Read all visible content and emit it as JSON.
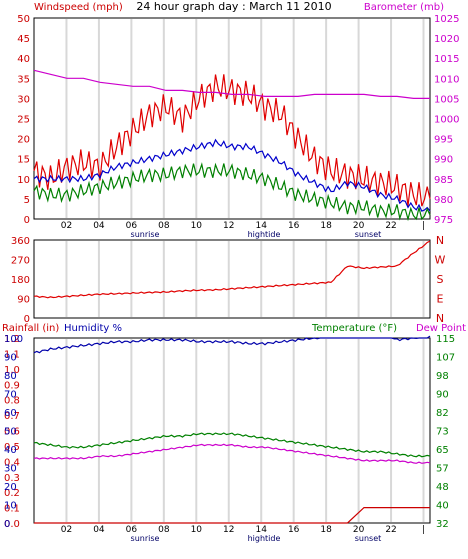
{
  "title": "24 hour graph day : March 11 2010",
  "colors": {
    "wind": "#e00000",
    "gust": "#0000cc",
    "wind_green": "#008000",
    "baro": "#cc00cc",
    "rain": "#cc0000",
    "humidity": "#0000aa",
    "temp": "#008000",
    "dew": "#cc00cc",
    "grid": "#d8d8d8",
    "axis_left": "#cc0000",
    "axis_right": "#cc00cc"
  },
  "time_axis": {
    "ticks": [
      "02",
      "04",
      "06",
      "08",
      "10",
      "12",
      "14",
      "16",
      "18",
      "20",
      "22",
      "|"
    ],
    "events": [
      "sunrise",
      "hightide",
      "sunset"
    ]
  },
  "chart_data": [
    {
      "id": "wind-baro",
      "type": "line",
      "left_label": "Windspeed (mph)",
      "right_label": "Barometer (mb)",
      "left_ticks": [
        "0",
        "5",
        "10",
        "15",
        "20",
        "25",
        "30",
        "35",
        "40",
        "45",
        "50"
      ],
      "right_ticks": [
        "975",
        "980",
        "985",
        "990",
        "995",
        "1000",
        "1005",
        "1010",
        "1015",
        "1020",
        "1025"
      ],
      "ylim_left": [
        0,
        50
      ],
      "ylim_right": [
        975,
        1025
      ],
      "x": [
        0,
        1,
        2,
        3,
        4,
        5,
        6,
        7,
        8,
        9,
        10,
        11,
        12,
        13,
        14,
        15,
        16,
        17,
        18,
        19,
        20,
        21,
        22,
        23,
        24
      ],
      "series": [
        {
          "role": "wind-red",
          "axis": "left",
          "values": [
            12,
            10,
            13,
            14,
            13,
            18,
            22,
            26,
            28,
            25,
            30,
            33,
            32,
            31,
            28,
            26,
            20,
            15,
            12,
            11,
            10,
            9,
            8,
            6,
            5
          ]
        },
        {
          "role": "wind-blue",
          "axis": "left",
          "values": [
            10,
            10,
            10,
            10,
            11,
            13,
            14,
            15,
            16,
            17,
            18,
            19,
            18,
            18,
            16,
            14,
            11,
            9,
            7,
            9,
            8,
            6,
            5,
            3,
            2
          ]
        },
        {
          "role": "wind-green",
          "axis": "left",
          "values": [
            7,
            6,
            6,
            7,
            8,
            9,
            10,
            11,
            11,
            12,
            12,
            12,
            12,
            11,
            10,
            8,
            6,
            5,
            4,
            3,
            3,
            2,
            2,
            1,
            1
          ]
        },
        {
          "role": "baro",
          "axis": "right",
          "values": [
            1012,
            1011,
            1010,
            1010,
            1009,
            1008.5,
            1008,
            1008,
            1007,
            1007,
            1006.5,
            1006.5,
            1006,
            1006,
            1005.5,
            1005.5,
            1005.5,
            1006,
            1006,
            1006,
            1006,
            1005.5,
            1005.5,
            1005,
            1005
          ]
        }
      ]
    },
    {
      "id": "direction",
      "type": "line",
      "left_ticks": [
        "0",
        "90",
        "180",
        "270",
        "360"
      ],
      "right_ticks": [
        "N",
        "E",
        "S",
        "W",
        "N"
      ],
      "ylim": [
        0,
        360
      ],
      "x": [
        0,
        1,
        2,
        3,
        4,
        5,
        6,
        7,
        8,
        9,
        10,
        11,
        12,
        13,
        14,
        15,
        16,
        17,
        18,
        19,
        20,
        21,
        22,
        23,
        24
      ],
      "series": [
        {
          "role": "wind-dir",
          "values": [
            100,
            95,
            100,
            105,
            110,
            112,
            115,
            118,
            120,
            125,
            128,
            130,
            135,
            140,
            145,
            150,
            155,
            160,
            165,
            240,
            230,
            235,
            240,
            300,
            355
          ]
        }
      ]
    },
    {
      "id": "rain-hum-temp",
      "type": "line",
      "left_label_rain": "Rainfall (in)",
      "left_label_hum": "Humidity %",
      "right_label_temp": "Temperature (°F)",
      "right_label_dew": "Dew Point",
      "rain_ticks": [
        "0.0",
        "0.1",
        "0.2",
        "0.3",
        "0.4",
        "0.5",
        "0.6",
        "0.7",
        "0.8",
        "0.9",
        "1.0",
        "1.1",
        "1.2"
      ],
      "hum_ticks": [
        "0",
        "10",
        "20",
        "30",
        "40",
        "50",
        "60",
        "70",
        "80",
        "90",
        "100"
      ],
      "temp_ticks": [
        "32",
        "40",
        "48",
        "57",
        "65",
        "73",
        "82",
        "90",
        "98",
        "107",
        "115"
      ],
      "ylim_rain": [
        0,
        1.2
      ],
      "ylim_hum": [
        0,
        100
      ],
      "ylim_temp": [
        32,
        115
      ],
      "x": [
        0,
        1,
        2,
        3,
        4,
        5,
        6,
        7,
        8,
        9,
        10,
        11,
        12,
        13,
        14,
        15,
        16,
        17,
        18,
        19,
        20,
        21,
        22,
        23,
        24
      ],
      "series": [
        {
          "role": "rain",
          "axis": "rain",
          "values": [
            0,
            0,
            0,
            0,
            0,
            0,
            0,
            0,
            0,
            0,
            0,
            0,
            0,
            0,
            0,
            0,
            0,
            0,
            0,
            0,
            0.1,
            0.1,
            0.1,
            0.1,
            0.1
          ]
        },
        {
          "role": "humidity",
          "axis": "hum",
          "values": [
            92,
            94,
            95,
            96,
            97,
            98,
            98,
            99,
            99,
            99,
            98,
            98,
            98,
            97,
            97,
            98,
            99,
            100,
            101,
            102,
            103,
            103,
            99,
            100,
            101
          ]
        },
        {
          "role": "temperature",
          "axis": "temp",
          "values": [
            68,
            67,
            66,
            66,
            67,
            68,
            69,
            70,
            71,
            71,
            72,
            72,
            72,
            71,
            70,
            69,
            68,
            67,
            66,
            65,
            64,
            64,
            63,
            62,
            62
          ]
        },
        {
          "role": "dewpoint",
          "axis": "temp",
          "values": [
            61,
            61,
            61,
            61,
            62,
            62,
            63,
            64,
            65,
            66,
            67,
            67,
            67,
            66,
            66,
            65,
            64,
            63,
            62,
            61,
            60,
            60,
            60,
            59,
            59
          ]
        }
      ]
    }
  ]
}
